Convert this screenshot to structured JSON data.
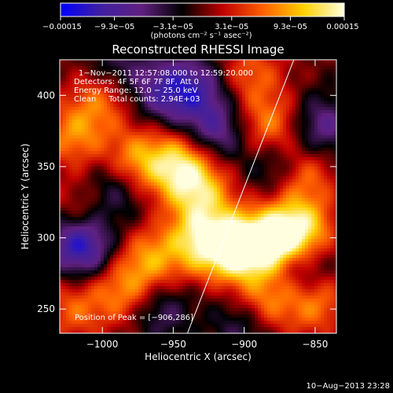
{
  "chart_data": {
    "type": "heatmap",
    "title": "Reconstructed RHESSI Image",
    "xlabel": "Heliocentric X (arcsec)",
    "ylabel": "Heliocentric Y (arcsec)",
    "xlim": [
      -1030,
      -835
    ],
    "ylim": [
      233,
      425
    ],
    "x_ticks": [
      -1000,
      -950,
      -900,
      -850
    ],
    "x_tick_labels": [
      "−1000",
      "−950",
      "−900",
      "−850"
    ],
    "y_ticks": [
      250,
      300,
      350,
      400
    ],
    "y_tick_labels": [
      "250",
      "300",
      "350",
      "400"
    ],
    "colorbar": {
      "range": [
        -0.00015,
        0.00015
      ],
      "ticks": [
        -0.00015,
        -9.3e-05,
        -3.1e-05,
        3.1e-05,
        9.3e-05,
        0.00015
      ],
      "tick_labels": [
        "−0.00015",
        "−9.3e−05",
        "−3.1e−05",
        "3.1e−05",
        "9.3e−05",
        "0.00015"
      ],
      "units_label": "(photons cm⁻² s⁻¹ asec⁻²)",
      "colormap": [
        "#0000ff",
        "#4020a0",
        "#602080",
        "#000000",
        "#c00000",
        "#ff6000",
        "#ffd000",
        "#ffffe0"
      ]
    },
    "annotations": [
      "1−Nov−2011 12:57:08.000 to 12:59:20.000",
      "Detectors: 4F 5F 6F 7F 8F, Att 0",
      "Energy Range: 12.0 − 25.0 keV",
      "Clean     Total counts: 2.94E+03"
    ],
    "peak_label": "Position of Peak = [−906,286]",
    "limb_line": [
      [
        -940,
        233
      ],
      [
        -865,
        425
      ]
    ],
    "blobs": [
      {
        "x": -905,
        "y": 292,
        "v": 1.0
      },
      {
        "x": -880,
        "y": 298,
        "v": 0.9
      },
      {
        "x": -860,
        "y": 305,
        "v": 0.8
      },
      {
        "x": -930,
        "y": 298,
        "v": 0.75
      },
      {
        "x": -945,
        "y": 350,
        "v": 0.8
      },
      {
        "x": -930,
        "y": 330,
        "v": 0.6
      },
      {
        "x": -975,
        "y": 355,
        "v": 0.55
      },
      {
        "x": -1000,
        "y": 398,
        "v": 0.45
      },
      {
        "x": -1020,
        "y": 372,
        "v": 0.5
      },
      {
        "x": -1010,
        "y": 320,
        "v": 0.45
      },
      {
        "x": -965,
        "y": 285,
        "v": 0.55
      },
      {
        "x": -985,
        "y": 262,
        "v": 0.5
      },
      {
        "x": -885,
        "y": 255,
        "v": 0.55
      },
      {
        "x": -850,
        "y": 255,
        "v": 0.5
      },
      {
        "x": -860,
        "y": 345,
        "v": 0.6
      },
      {
        "x": -882,
        "y": 378,
        "v": 0.55
      },
      {
        "x": -895,
        "y": 415,
        "v": 0.4
      },
      {
        "x": -1020,
        "y": 250,
        "v": 0.4
      },
      {
        "x": -958,
        "y": 402,
        "v": -0.5
      },
      {
        "x": -935,
        "y": 405,
        "v": -0.55
      },
      {
        "x": -1015,
        "y": 295,
        "v": -0.9
      },
      {
        "x": -995,
        "y": 330,
        "v": -0.5
      },
      {
        "x": -920,
        "y": 375,
        "v": -0.55
      },
      {
        "x": -875,
        "y": 350,
        "v": -0.5
      },
      {
        "x": -845,
        "y": 378,
        "v": -0.5
      },
      {
        "x": -860,
        "y": 280,
        "v": -0.45
      },
      {
        "x": -960,
        "y": 250,
        "v": -0.4
      },
      {
        "x": -900,
        "y": 240,
        "v": -0.4
      },
      {
        "x": -990,
        "y": 420,
        "v": -0.35
      }
    ]
  },
  "footer_timestamp": "10−Aug−2013 23:28"
}
